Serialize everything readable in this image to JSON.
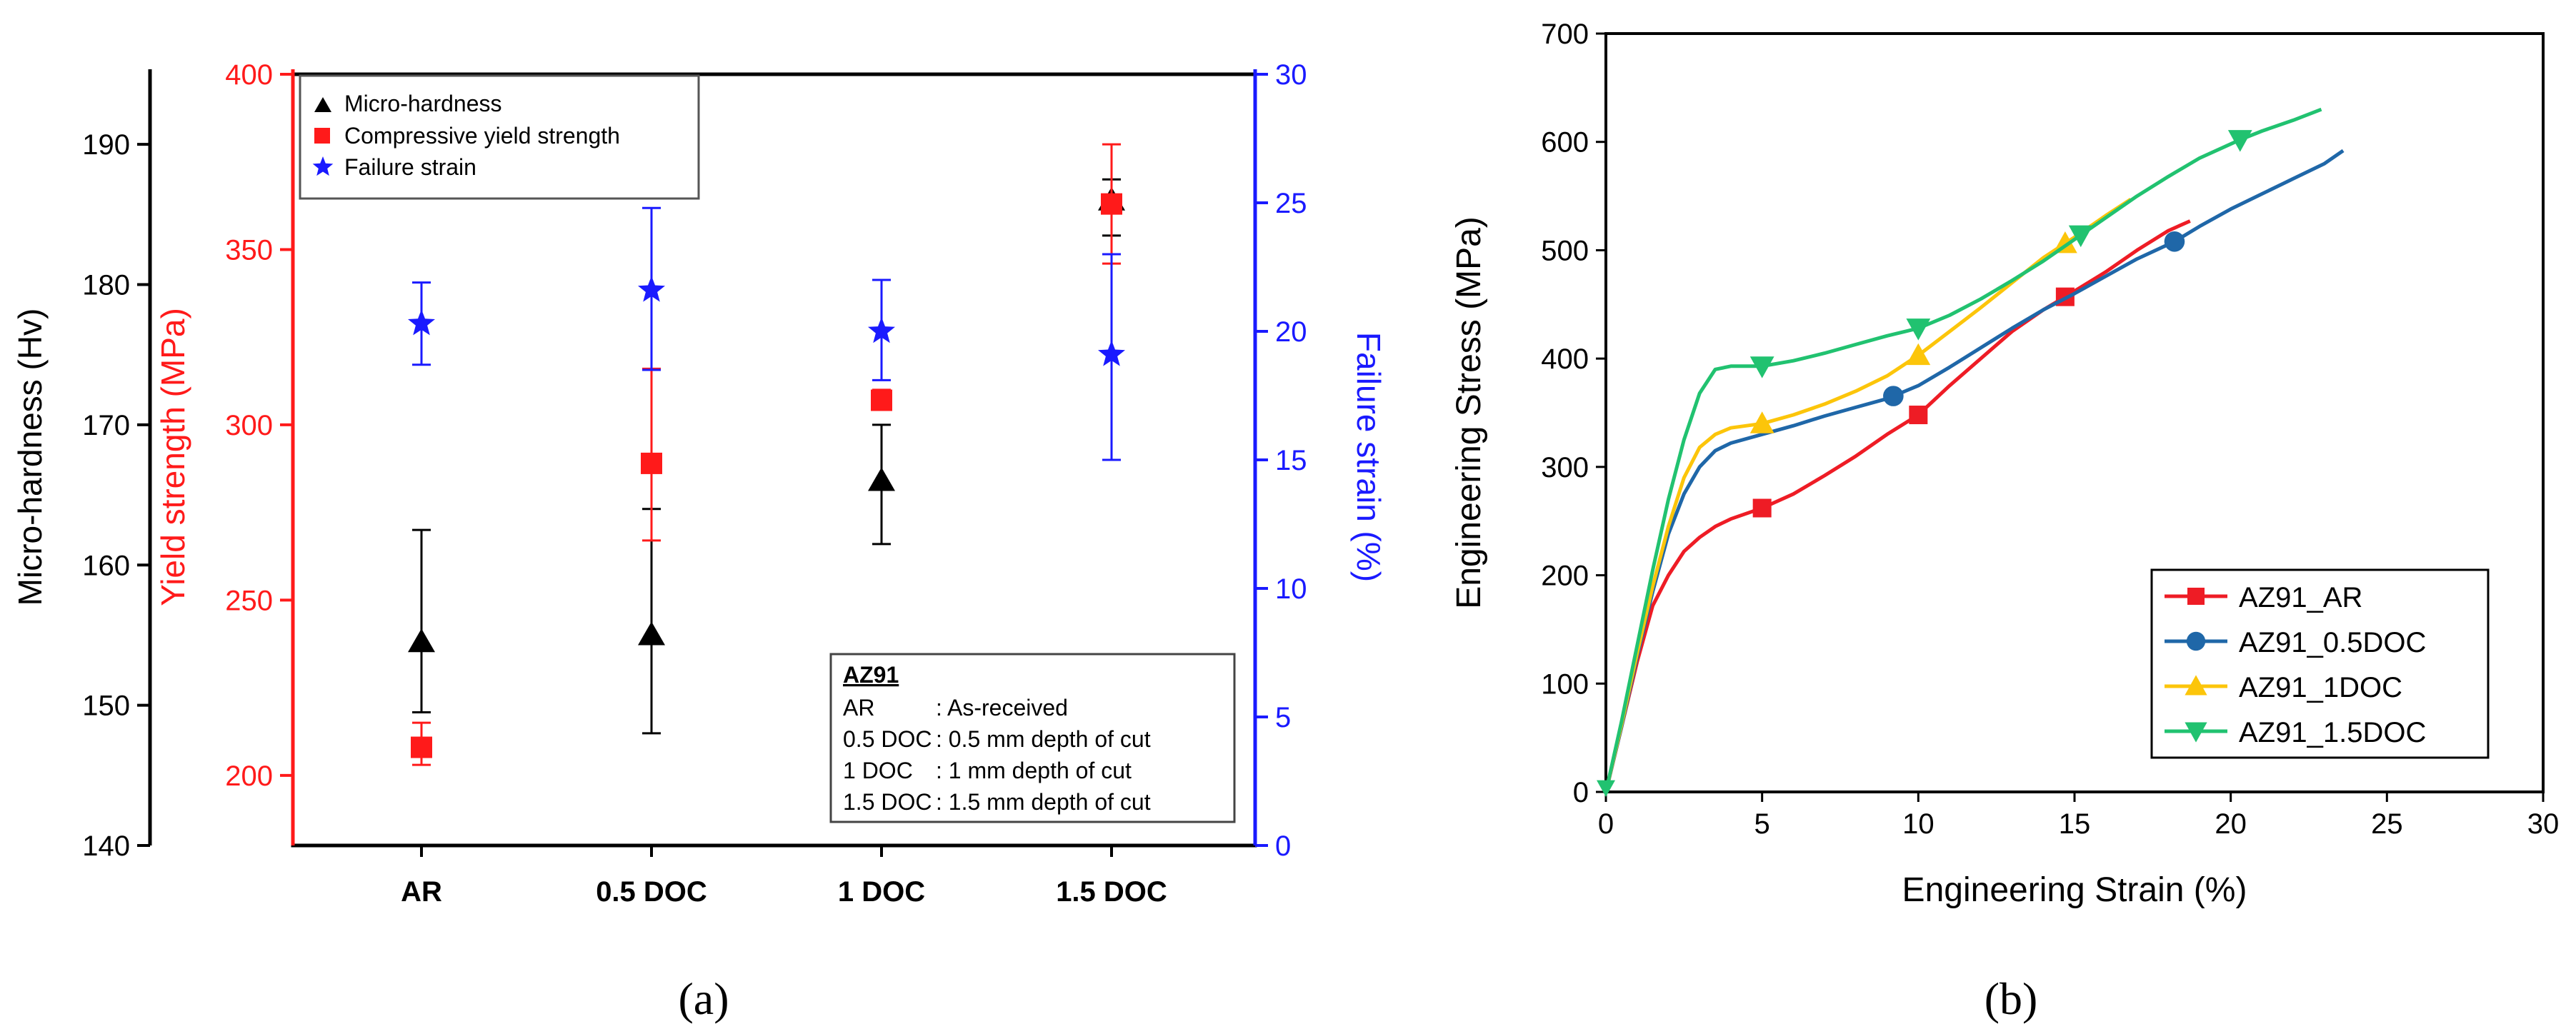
{
  "chart_data": [
    {
      "type": "scatter",
      "panel_label": "(a)",
      "categories": [
        "AR",
        "0.5 DOC",
        "1 DOC",
        "1.5 DOC"
      ],
      "axes": {
        "left_outer": {
          "label": "Micro-hardness (Hv)",
          "range": [
            140,
            195
          ],
          "ticks": [
            140,
            150,
            160,
            170,
            180,
            190
          ],
          "color": "#000000"
        },
        "left_inner": {
          "label": "Yield strength (MPa)",
          "range": [
            180,
            400
          ],
          "ticks": [
            200,
            250,
            300,
            350,
            400
          ],
          "color": "#ff1a1a"
        },
        "right": {
          "label": "Failure strain (%)",
          "range": [
            0,
            30
          ],
          "ticks": [
            0,
            5,
            10,
            15,
            20,
            25,
            30
          ],
          "color": "#1a1aff"
        }
      },
      "series": [
        {
          "name": "Micro-hardness",
          "axis": "left_outer",
          "marker": "triangle",
          "color": "#000000",
          "values": [
            154.5,
            155,
            166,
            186
          ],
          "err_low": [
            149.5,
            148,
            161.5,
            183.5
          ],
          "err_high": [
            162.5,
            164,
            170,
            187.5
          ]
        },
        {
          "name": "Compressive yield strength",
          "axis": "left_inner",
          "marker": "square",
          "color": "#ff1a1a",
          "values": [
            208,
            289,
            307,
            363
          ],
          "err_low": [
            203,
            267,
            305,
            346
          ],
          "err_high": [
            215,
            316,
            310,
            380
          ]
        },
        {
          "name": "Failure strain",
          "axis": "right",
          "marker": "star",
          "color": "#1a1aff",
          "values": [
            20.3,
            21.6,
            20,
            19.1
          ],
          "err_low": [
            18.7,
            18.5,
            18.1,
            15
          ],
          "err_high": [
            21.9,
            24.8,
            22,
            23
          ]
        }
      ],
      "legend": {
        "entries": [
          "Micro-hardness",
          "Compressive yield strength",
          "Failure strain"
        ],
        "placement": "top-left"
      },
      "info_box": {
        "title": "AZ91",
        "rows": [
          {
            "key": "AR",
            "value": ":   As-received"
          },
          {
            "key": "0.5 DOC",
            "value": ":  0.5 mm depth of cut"
          },
          {
            "key": "1 DOC",
            "value": ":   1 mm depth of cut"
          },
          {
            "key": "1.5 DOC",
            "value": ":  1.5 mm depth of cut"
          }
        ],
        "placement": "bottom-right"
      }
    },
    {
      "type": "line",
      "panel_label": "(b)",
      "xlabel": "Engineering Strain (%)",
      "ylabel": "Engineering Stress (MPa)",
      "xlim": [
        0,
        30
      ],
      "ylim": [
        0,
        700
      ],
      "xticks": [
        0,
        5,
        10,
        15,
        20,
        25,
        30
      ],
      "yticks": [
        0,
        100,
        200,
        300,
        400,
        500,
        600,
        700
      ],
      "series": [
        {
          "name": "AZ91_AR",
          "color": "#ee1c25",
          "marker": "square",
          "x": [
            0,
            0.5,
            1,
            1.5,
            2,
            2.5,
            3,
            3.5,
            4,
            5,
            6,
            7,
            8,
            9,
            10,
            11,
            12,
            13,
            14,
            14.7,
            16,
            17,
            18,
            18.7
          ],
          "y": [
            0,
            60,
            120,
            172,
            200,
            222,
            235,
            245,
            252,
            262,
            275,
            292,
            310,
            330,
            348,
            375,
            400,
            425,
            445,
            457,
            480,
            500,
            518,
            527
          ],
          "marker_x": [
            5,
            10,
            14.7
          ]
        },
        {
          "name": "AZ91_0.5DOC",
          "color": "#1f67a8",
          "marker": "circle",
          "x": [
            0,
            0.5,
            1,
            1.5,
            2,
            2.5,
            3,
            3.5,
            4,
            5,
            6,
            7,
            8,
            9,
            10,
            11,
            12,
            13,
            14,
            15,
            16,
            17,
            18.2,
            19,
            20,
            21,
            22,
            23,
            23.6
          ],
          "y": [
            0,
            60,
            125,
            185,
            238,
            275,
            300,
            315,
            322,
            330,
            338,
            347,
            355,
            363,
            375,
            392,
            410,
            428,
            445,
            460,
            476,
            492,
            508,
            522,
            538,
            552,
            566,
            580,
            592
          ],
          "marker_x": [
            9.2,
            18.2
          ]
        },
        {
          "name": "AZ91_1DOC",
          "color": "#fcc50a",
          "marker": "triangle-up",
          "x": [
            0,
            0.5,
            1,
            1.5,
            2,
            2.5,
            3,
            3.5,
            4,
            5,
            6,
            7,
            8,
            9,
            10,
            11,
            12,
            13,
            14,
            15,
            16,
            16.8
          ],
          "y": [
            0,
            62,
            128,
            190,
            245,
            290,
            318,
            330,
            336,
            340,
            348,
            358,
            370,
            384,
            403,
            425,
            447,
            470,
            493,
            512,
            532,
            547
          ],
          "marker_x": [
            5,
            10,
            14.7
          ]
        },
        {
          "name": "AZ91_1.5DOC",
          "color": "#21c270",
          "marker": "triangle-down",
          "x": [
            0,
            0.5,
            1,
            1.5,
            2,
            2.5,
            3,
            3.5,
            4,
            5,
            6,
            7,
            8,
            9,
            10,
            11,
            12,
            13,
            14,
            15,
            16,
            17,
            18,
            19,
            20.3,
            21,
            22,
            22.9
          ],
          "y": [
            0,
            65,
            135,
            205,
            270,
            325,
            368,
            390,
            393,
            393,
            398,
            405,
            413,
            421,
            428,
            440,
            455,
            472,
            490,
            510,
            530,
            550,
            568,
            585,
            602,
            610,
            620,
            630
          ],
          "marker_x": [
            5,
            10,
            15.2,
            20.3
          ]
        }
      ],
      "legend": {
        "entries": [
          "AZ91_AR",
          "AZ91_0.5DOC",
          "AZ91_1DOC",
          "AZ91_1.5DOC"
        ],
        "placement": "lower-right"
      }
    }
  ]
}
